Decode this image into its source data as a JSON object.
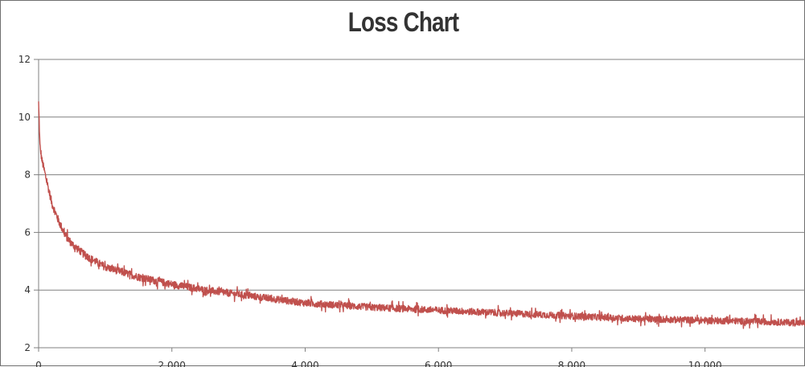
{
  "chart_data": {
    "type": "line",
    "title": "Loss Chart",
    "xlabel": "",
    "ylabel": "",
    "xlim": [
      0,
      11500
    ],
    "ylim": [
      2,
      12
    ],
    "x_ticks": [
      0,
      2000,
      4000,
      6000,
      8000,
      10000
    ],
    "x_tick_labels": [
      "0",
      "2,000",
      "4,000",
      "6,000",
      "8,000",
      "10,000"
    ],
    "y_ticks": [
      2,
      4,
      6,
      8,
      10,
      12
    ],
    "y_tick_labels": [
      "2",
      "4",
      "6",
      "8",
      "10",
      "12"
    ],
    "grid": "horizontal",
    "legend": "none",
    "series": [
      {
        "color": "#c0504d",
        "x": [
          0,
          20,
          50,
          100,
          200,
          300,
          400,
          500,
          700,
          1000,
          1500,
          2000,
          2500,
          3000,
          3500,
          4000,
          5000,
          6000,
          7000,
          8000,
          9000,
          10000,
          11000,
          11500
        ],
        "y": [
          10.5,
          9.0,
          8.5,
          8.0,
          7.0,
          6.4,
          5.9,
          5.6,
          5.2,
          4.8,
          4.45,
          4.2,
          4.0,
          3.85,
          3.7,
          3.55,
          3.4,
          3.3,
          3.2,
          3.1,
          3.0,
          2.95,
          2.9,
          2.85
        ]
      }
    ]
  }
}
